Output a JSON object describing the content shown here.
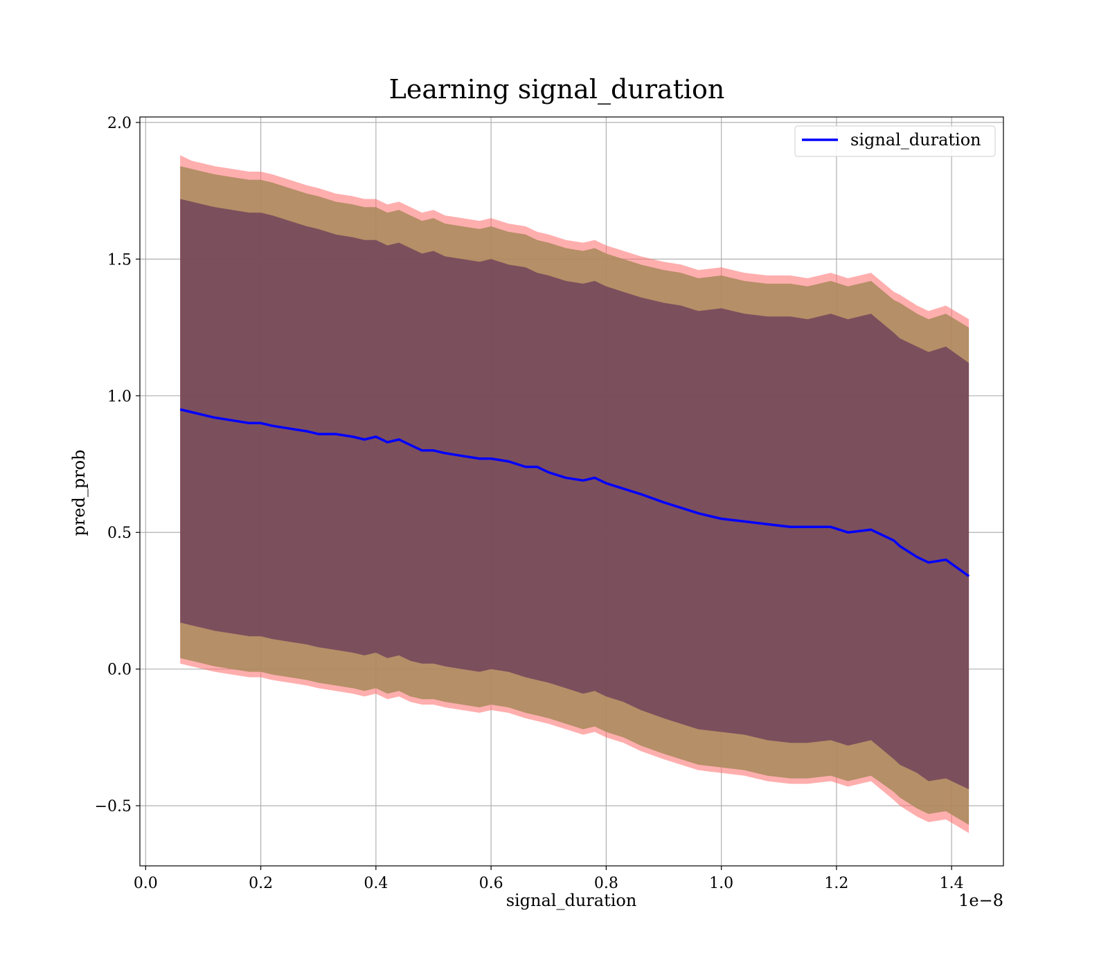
{
  "chart_data": {
    "type": "line",
    "title": "Learning signal_duration",
    "xlabel": "signal_duration",
    "ylabel": "pred_prob",
    "x_offset_text": "1e−8",
    "xlim": [
      -0.01,
      1.49
    ],
    "ylim": [
      -0.72,
      2.02
    ],
    "x_ticks": [
      0.0,
      0.2,
      0.4,
      0.6,
      0.8,
      1.0,
      1.2,
      1.4
    ],
    "x_tick_labels": [
      "0.0",
      "0.2",
      "0.4",
      "0.6",
      "0.8",
      "1.0",
      "1.2",
      "1.4"
    ],
    "y_ticks": [
      -0.5,
      0.0,
      0.5,
      1.0,
      1.5,
      2.0
    ],
    "y_tick_labels": [
      "−0.5",
      "0.0",
      "0.5",
      "1.0",
      "1.5",
      "2.0"
    ],
    "grid": true,
    "legend": {
      "position": "top-right",
      "entries": [
        "signal_duration"
      ]
    },
    "colors": {
      "line": "#0000ff",
      "band_outer": "#ff6b6b",
      "band_mid": "#a88a5a",
      "band_inner": "#6a3a5a"
    },
    "series": [
      {
        "name": "signal_duration",
        "x": [
          0.06,
          0.08,
          0.1,
          0.12,
          0.15,
          0.18,
          0.2,
          0.22,
          0.25,
          0.28,
          0.3,
          0.33,
          0.36,
          0.38,
          0.4,
          0.42,
          0.44,
          0.46,
          0.48,
          0.5,
          0.52,
          0.55,
          0.58,
          0.6,
          0.63,
          0.66,
          0.68,
          0.7,
          0.73,
          0.76,
          0.78,
          0.8,
          0.83,
          0.86,
          0.9,
          0.93,
          0.96,
          1.0,
          1.04,
          1.08,
          1.12,
          1.15,
          1.19,
          1.22,
          1.26,
          1.3,
          1.31,
          1.34,
          1.36,
          1.39,
          1.43
        ],
        "values": [
          0.95,
          0.94,
          0.93,
          0.92,
          0.91,
          0.9,
          0.9,
          0.89,
          0.88,
          0.87,
          0.86,
          0.86,
          0.85,
          0.84,
          0.85,
          0.83,
          0.84,
          0.82,
          0.8,
          0.8,
          0.79,
          0.78,
          0.77,
          0.77,
          0.76,
          0.74,
          0.74,
          0.72,
          0.7,
          0.69,
          0.7,
          0.68,
          0.66,
          0.64,
          0.61,
          0.59,
          0.57,
          0.55,
          0.54,
          0.53,
          0.52,
          0.52,
          0.52,
          0.5,
          0.51,
          0.47,
          0.45,
          0.41,
          0.39,
          0.4,
          0.34
        ],
        "band_outer": {
          "upper": [
            1.88,
            1.86,
            1.85,
            1.84,
            1.83,
            1.82,
            1.82,
            1.81,
            1.79,
            1.77,
            1.76,
            1.74,
            1.73,
            1.72,
            1.72,
            1.7,
            1.71,
            1.69,
            1.67,
            1.68,
            1.66,
            1.65,
            1.64,
            1.65,
            1.63,
            1.62,
            1.6,
            1.59,
            1.57,
            1.56,
            1.57,
            1.55,
            1.53,
            1.51,
            1.49,
            1.48,
            1.46,
            1.47,
            1.45,
            1.44,
            1.44,
            1.43,
            1.45,
            1.43,
            1.45,
            1.38,
            1.37,
            1.33,
            1.31,
            1.33,
            1.28
          ],
          "lower": [
            0.02,
            0.01,
            0.0,
            -0.01,
            -0.02,
            -0.03,
            -0.03,
            -0.04,
            -0.05,
            -0.06,
            -0.07,
            -0.08,
            -0.09,
            -0.1,
            -0.09,
            -0.11,
            -0.1,
            -0.12,
            -0.13,
            -0.13,
            -0.14,
            -0.15,
            -0.16,
            -0.15,
            -0.16,
            -0.18,
            -0.19,
            -0.2,
            -0.22,
            -0.24,
            -0.23,
            -0.25,
            -0.27,
            -0.3,
            -0.33,
            -0.35,
            -0.37,
            -0.38,
            -0.39,
            -0.41,
            -0.42,
            -0.42,
            -0.41,
            -0.43,
            -0.41,
            -0.48,
            -0.5,
            -0.54,
            -0.56,
            -0.55,
            -0.6
          ]
        },
        "band_mid": {
          "upper": [
            1.84,
            1.83,
            1.82,
            1.81,
            1.8,
            1.79,
            1.79,
            1.78,
            1.76,
            1.74,
            1.73,
            1.71,
            1.7,
            1.69,
            1.69,
            1.67,
            1.68,
            1.66,
            1.64,
            1.65,
            1.63,
            1.62,
            1.61,
            1.62,
            1.6,
            1.59,
            1.57,
            1.56,
            1.54,
            1.53,
            1.54,
            1.52,
            1.5,
            1.48,
            1.46,
            1.45,
            1.43,
            1.44,
            1.42,
            1.41,
            1.41,
            1.4,
            1.42,
            1.4,
            1.42,
            1.35,
            1.34,
            1.3,
            1.28,
            1.3,
            1.25
          ],
          "lower": [
            0.04,
            0.03,
            0.02,
            0.01,
            0.0,
            -0.01,
            -0.01,
            -0.02,
            -0.03,
            -0.04,
            -0.05,
            -0.06,
            -0.07,
            -0.08,
            -0.07,
            -0.09,
            -0.08,
            -0.1,
            -0.11,
            -0.11,
            -0.12,
            -0.13,
            -0.14,
            -0.13,
            -0.14,
            -0.16,
            -0.17,
            -0.18,
            -0.2,
            -0.22,
            -0.21,
            -0.23,
            -0.25,
            -0.28,
            -0.31,
            -0.33,
            -0.35,
            -0.36,
            -0.37,
            -0.39,
            -0.4,
            -0.4,
            -0.39,
            -0.41,
            -0.39,
            -0.45,
            -0.47,
            -0.51,
            -0.53,
            -0.52,
            -0.57
          ]
        },
        "band_inner": {
          "upper": [
            1.72,
            1.71,
            1.7,
            1.69,
            1.68,
            1.67,
            1.67,
            1.66,
            1.64,
            1.62,
            1.61,
            1.59,
            1.58,
            1.57,
            1.57,
            1.55,
            1.56,
            1.54,
            1.52,
            1.53,
            1.51,
            1.5,
            1.49,
            1.5,
            1.48,
            1.47,
            1.45,
            1.44,
            1.42,
            1.41,
            1.42,
            1.4,
            1.38,
            1.36,
            1.34,
            1.33,
            1.31,
            1.32,
            1.3,
            1.29,
            1.29,
            1.28,
            1.3,
            1.28,
            1.3,
            1.23,
            1.21,
            1.18,
            1.16,
            1.18,
            1.12
          ],
          "lower": [
            0.17,
            0.16,
            0.15,
            0.14,
            0.13,
            0.12,
            0.12,
            0.11,
            0.1,
            0.09,
            0.08,
            0.07,
            0.06,
            0.05,
            0.06,
            0.04,
            0.05,
            0.03,
            0.02,
            0.02,
            0.01,
            0.0,
            -0.01,
            0.0,
            -0.01,
            -0.03,
            -0.04,
            -0.05,
            -0.07,
            -0.09,
            -0.08,
            -0.1,
            -0.12,
            -0.15,
            -0.18,
            -0.2,
            -0.22,
            -0.23,
            -0.24,
            -0.26,
            -0.27,
            -0.27,
            -0.26,
            -0.28,
            -0.26,
            -0.33,
            -0.35,
            -0.38,
            -0.41,
            -0.4,
            -0.44
          ]
        }
      }
    ]
  }
}
